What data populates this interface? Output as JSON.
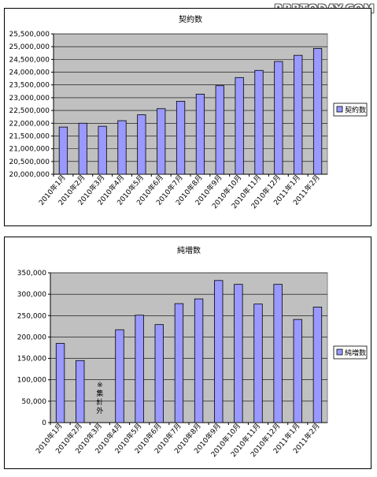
{
  "watermark": "RBBTODAY.COM",
  "chart_data": [
    {
      "type": "bar",
      "title": "契約数",
      "categories": [
        "2010年1月",
        "2010年2月",
        "2010年3月",
        "2010年4月",
        "2010年5月",
        "2010年6月",
        "2010年7月",
        "2010年8月",
        "2010年9月",
        "2010年10月",
        "2010年11月",
        "2010年12月",
        "2011年1月",
        "2011年2月"
      ],
      "series": [
        {
          "name": "契約数",
          "values": [
            21850000,
            22000000,
            21880000,
            22100000,
            22330000,
            22570000,
            22860000,
            23140000,
            23470000,
            23790000,
            24070000,
            24420000,
            24660000,
            24930000
          ]
        }
      ],
      "ylim": [
        20000000,
        25500000
      ],
      "yticks": [
        20000000,
        20500000,
        21000000,
        21500000,
        22000000,
        22500000,
        23000000,
        23500000,
        24000000,
        24500000,
        25000000,
        25500000
      ],
      "ytick_labels": [
        "20,000,000",
        "20,500,000",
        "21,000,000",
        "21,500,000",
        "22,000,000",
        "22,500,000",
        "23,000,000",
        "23,500,000",
        "24,000,000",
        "24,500,000",
        "25,000,000",
        "25,500,000"
      ],
      "legend_position": "right",
      "grid": true,
      "bar_color": "#9999ff",
      "plot_color": "#c0c0c0",
      "annotations": []
    },
    {
      "type": "bar",
      "title": "純増数",
      "categories": [
        "2010年1月",
        "2010年2月",
        "2010年3月",
        "2010年4月",
        "2010年5月",
        "2010年6月",
        "2010年7月",
        "2010年8月",
        "2010年9月",
        "2010年10月",
        "2010年11月",
        "2010年12月",
        "2011年1月",
        "2011年2月"
      ],
      "series": [
        {
          "name": "純増数",
          "values": [
            185000,
            145000,
            null,
            217000,
            251000,
            229000,
            278000,
            289000,
            332000,
            323000,
            277000,
            323000,
            241000,
            270000
          ]
        }
      ],
      "ylim": [
        0,
        350000
      ],
      "yticks": [
        0,
        50000,
        100000,
        150000,
        200000,
        250000,
        300000,
        350000
      ],
      "ytick_labels": [
        "0",
        "50,000",
        "100,000",
        "150,000",
        "200,000",
        "250,000",
        "300,000",
        "350,000"
      ],
      "legend_position": "right",
      "grid": true,
      "bar_color": "#9999ff",
      "plot_color": "#c0c0c0",
      "annotations": [
        {
          "category_index": 2,
          "lines": [
            "※",
            "集",
            "計",
            "外"
          ]
        }
      ]
    }
  ]
}
